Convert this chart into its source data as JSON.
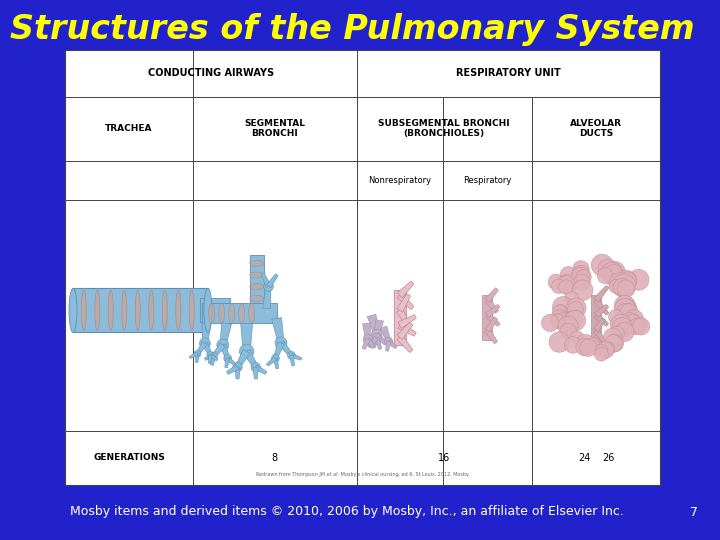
{
  "title": "Structures of the Pulmonary System",
  "title_color": "#FFFF00",
  "title_fontsize": 24,
  "bg_color": "#2222CC",
  "footer_text": "Mosby items and derived items © 2010, 2006 by Mosby, Inc., an affiliate of Elsevier Inc.",
  "footer_page": "7",
  "footer_color": "#FFFFFF",
  "footer_fontsize": 9,
  "source_text": "Redrawn from Thompson JM et al: Mosby's clinical nursing, ed 6. St Louis, 2012, Mosby.",
  "header_row1_left": "CONDUCTING AIRWAYS",
  "header_row1_right": "RESPIRATORY UNIT",
  "col1_label": "TRACHEA",
  "col2_label": "SEGMENTAL\nBRONCHI",
  "col3_label": "SUBSEGMENTAL BRONCHI\n(BRONCHIOLES)",
  "col3a_label": "Nonrespiratory",
  "col3b_label": "Respiratory",
  "col4_label": "ALVEOLAR\nDUCTS",
  "gen_label": "GENERATIONS",
  "gen_col2": "8",
  "gen_col3": "16",
  "gen_col3b": "24",
  "gen_col4": "26",
  "blue_tube": "#8BBCDA",
  "blue_dark": "#5A90B8",
  "blue_rib": "#C4A8A0",
  "pink_tube": "#D4A0A8",
  "pink_dark": "#B87888",
  "pink_light": "#E8C0C8",
  "alv_color": "#DFB0B8",
  "alv_edge": "#C09098"
}
